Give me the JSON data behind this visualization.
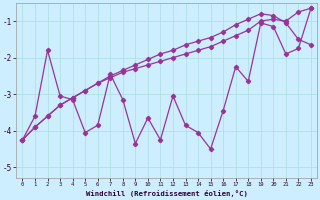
{
  "xlabel": "Windchill (Refroidissement éolien,°C)",
  "background_color": "#cceeff",
  "line_color": "#993399",
  "grid_color": "#aadddd",
  "xlim": [
    -0.5,
    23.5
  ],
  "ylim": [
    -5.3,
    -0.5
  ],
  "yticks": [
    -5,
    -4,
    -3,
    -2,
    -1
  ],
  "xticks": [
    0,
    1,
    2,
    3,
    4,
    5,
    6,
    7,
    8,
    9,
    10,
    11,
    12,
    13,
    14,
    15,
    16,
    17,
    18,
    19,
    20,
    21,
    22,
    23
  ],
  "smooth_upper": [
    -4.25,
    -3.9,
    -3.6,
    -3.3,
    -3.1,
    -2.9,
    -2.7,
    -2.5,
    -2.35,
    -2.2,
    -2.05,
    -1.9,
    -1.8,
    -1.65,
    -1.55,
    -1.45,
    -1.3,
    -1.1,
    -0.95,
    -0.8,
    -0.85,
    -1.05,
    -1.5,
    -1.65
  ],
  "smooth_lower": [
    -4.25,
    -3.9,
    -3.6,
    -3.3,
    -3.1,
    -2.9,
    -2.7,
    -2.55,
    -2.4,
    -2.3,
    -2.2,
    -2.1,
    -2.0,
    -1.9,
    -1.8,
    -1.7,
    -1.55,
    -1.4,
    -1.25,
    -1.0,
    -0.95,
    -1.0,
    -0.75,
    -0.65
  ],
  "zigzag": [
    -4.25,
    -3.6,
    -1.8,
    -3.05,
    -3.15,
    -4.05,
    -3.85,
    -2.45,
    -3.15,
    -4.35,
    -3.65,
    -4.25,
    -3.05,
    -3.85,
    -4.05,
    -4.5,
    -3.45,
    -2.25,
    -2.65,
    -1.05,
    -1.15,
    -1.9,
    -1.75,
    -0.65
  ]
}
